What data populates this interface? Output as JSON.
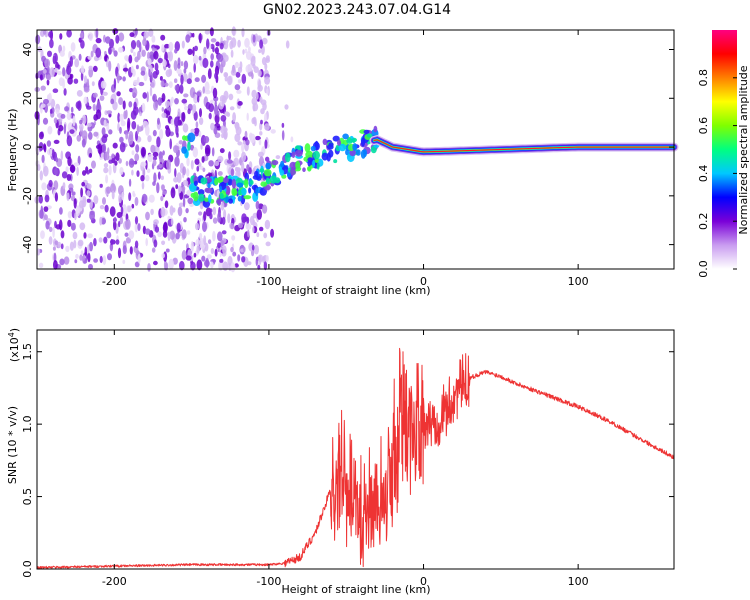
{
  "title": "GN02.2023.243.07.04.G14",
  "chart_data": [
    {
      "type": "heatmap",
      "xlabel": "Height of straight line (km)",
      "ylabel": "Frequency (Hz)",
      "xlim": [
        -250,
        162
      ],
      "ylim": [
        -50,
        48
      ],
      "xticks": [
        -200,
        -100,
        0,
        100
      ],
      "yticks": [
        -40,
        -20,
        0,
        20,
        40
      ],
      "colorbar": {
        "label": "Normalized spectral amplitude",
        "range": [
          0,
          1
        ],
        "ticks": [
          "0.0",
          "0.2",
          "0.4",
          "0.6",
          "0.8"
        ],
        "colormap": [
          "#ffffff",
          "#c99cf0",
          "#7a00d8",
          "#0000ff",
          "#00c8ff",
          "#00ff80",
          "#80ff00",
          "#ffff00",
          "#ff8000",
          "#ff0000",
          "#ff0080"
        ]
      },
      "features": {
        "noise_region_x": [
          -250,
          -100
        ],
        "ridge": [
          {
            "x": -150,
            "f": -18
          },
          {
            "x": -130,
            "f": -18
          },
          {
            "x": -110,
            "f": -16
          },
          {
            "x": -95,
            "f": -10
          },
          {
            "x": -80,
            "f": -5
          },
          {
            "x": -65,
            "f": -3
          },
          {
            "x": -50,
            "f": 0
          },
          {
            "x": -30,
            "f": 3
          },
          {
            "x": -20,
            "f": 0
          },
          {
            "x": 0,
            "f": -2
          },
          {
            "x": 50,
            "f": -1
          },
          {
            "x": 100,
            "f": 0
          },
          {
            "x": 162,
            "f": 0
          }
        ]
      }
    },
    {
      "type": "line",
      "xlabel": "Height of straight line (km)",
      "ylabel": "SNR (10 * v/v)",
      "y_multiplier": "(x10",
      "y_multiplier_exp": "4",
      "y_multiplier_close": ")",
      "xlim": [
        -250,
        162
      ],
      "ylim": [
        0,
        1.65
      ],
      "xticks": [
        -200,
        -100,
        0,
        100
      ],
      "yticks": [
        "0.0",
        "0.5",
        "1.0",
        "1.5"
      ],
      "color": "#ee3333",
      "series": [
        {
          "x": [
            -250,
            -200,
            -150,
            -100,
            -90,
            -80,
            -70,
            -60,
            -55,
            -50,
            -45,
            -40,
            -35,
            -30,
            -25,
            -20,
            -15,
            -10,
            -5,
            0,
            5,
            10,
            15,
            20,
            25,
            30,
            35,
            40,
            50,
            60,
            80,
            100,
            120,
            140,
            162
          ],
          "y": [
            0.01,
            0.02,
            0.03,
            0.03,
            0.04,
            0.08,
            0.25,
            0.55,
            0.7,
            0.6,
            0.5,
            0.45,
            0.5,
            0.45,
            0.55,
            0.85,
            1.2,
            1.1,
            1.05,
            1.0,
            1.0,
            1.05,
            1.1,
            1.2,
            1.28,
            1.32,
            1.34,
            1.36,
            1.33,
            1.28,
            1.2,
            1.12,
            1.02,
            0.9,
            0.77
          ]
        }
      ]
    }
  ]
}
